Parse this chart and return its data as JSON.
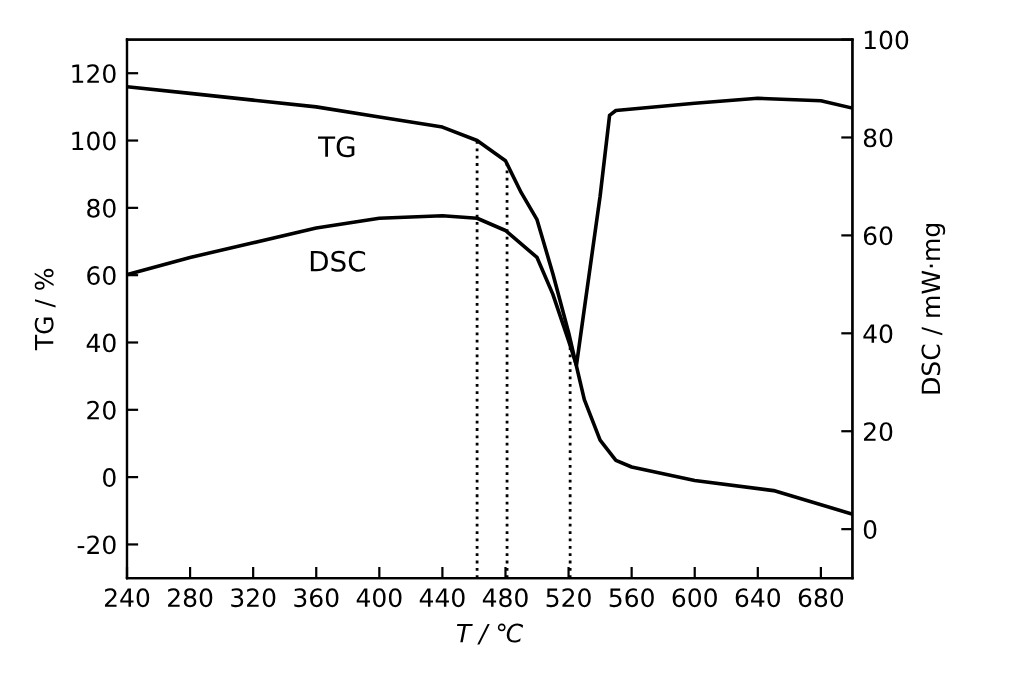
{
  "chart_data": {
    "type": "line",
    "xlabel": "T / ℃",
    "ylabel": "TG / %",
    "y2label": "DSC / mW·mg",
    "xlim": [
      240,
      700
    ],
    "xticks": [
      240,
      280,
      320,
      360,
      400,
      440,
      480,
      520,
      560,
      600,
      640,
      680
    ],
    "ylim": [
      -30,
      130
    ],
    "yticks": [
      -20,
      0,
      20,
      40,
      60,
      80,
      100,
      120
    ],
    "y2lim": [
      -10,
      100
    ],
    "y2ticks": [
      0,
      20,
      40,
      60,
      80,
      100
    ],
    "grid": false,
    "legend": false,
    "line_style": "solid",
    "marker": "none",
    "series": [
      {
        "name": "TG",
        "color": "#000000",
        "x": [
          240,
          280,
          320,
          360,
          400,
          440,
          462,
          480,
          490,
          500,
          510,
          520,
          525,
          530,
          540,
          550,
          560,
          600,
          650,
          700
        ],
        "values": [
          116,
          114,
          112,
          110,
          107,
          104,
          100,
          94,
          84.5,
          76.5,
          60.5,
          43,
          33,
          23,
          11,
          5,
          3,
          -1,
          -4,
          -11
        ]
      },
      {
        "name": "DSC",
        "color": "#000000",
        "axis": "y2",
        "x": [
          240,
          280,
          320,
          360,
          400,
          440,
          462,
          480,
          500,
          510,
          520,
          525,
          530,
          540,
          546,
          550,
          600,
          640,
          680,
          700
        ],
        "values": [
          52,
          55.5,
          58.5,
          61.5,
          63.5,
          64,
          63.5,
          61,
          55.5,
          48,
          38.5,
          33.5,
          45,
          68,
          84.5,
          85.5,
          87,
          88,
          87.5,
          86
        ]
      }
    ],
    "ref_lines": [
      {
        "axis": "x",
        "value": 462,
        "line_style": "dotted",
        "color": "#000000"
      },
      {
        "axis": "x",
        "value": 481,
        "line_style": "dotted",
        "color": "#000000"
      },
      {
        "axis": "x",
        "value": 521,
        "line_style": "dotted",
        "color": "#000000"
      }
    ]
  }
}
